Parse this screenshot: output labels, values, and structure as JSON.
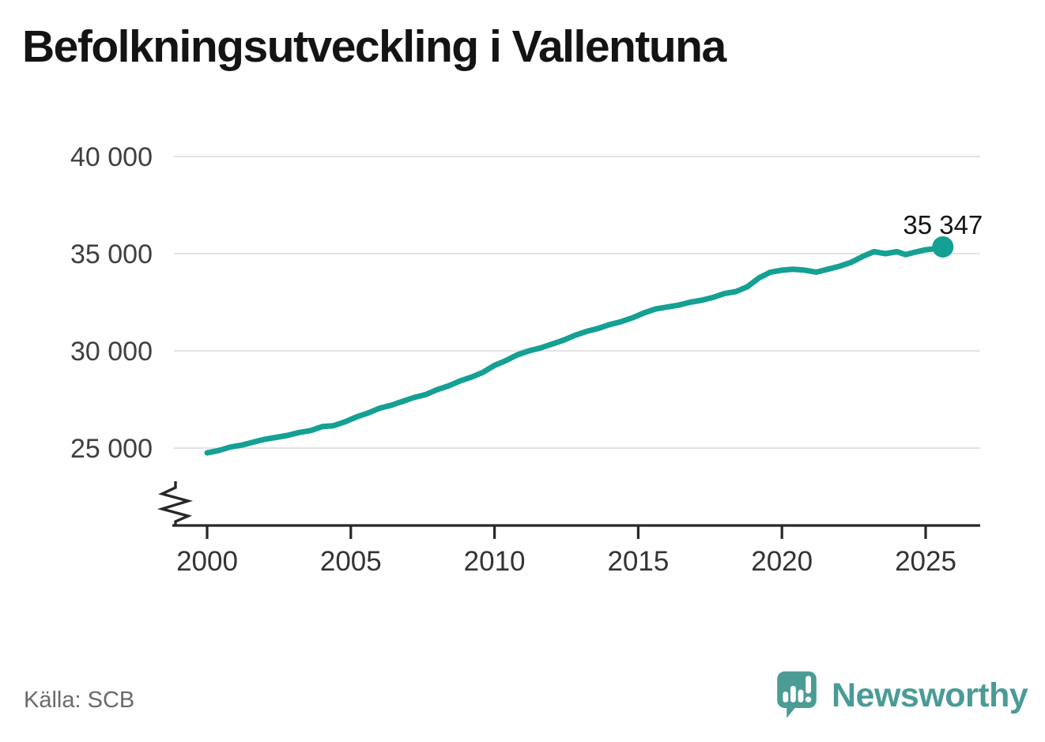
{
  "title": "Befolkningsutveckling i Vallentuna",
  "source": "Källa: SCB",
  "branding": {
    "logo_text": "Newsworthy",
    "logo_icon": "newsworthy-speech-bubble-barchart-icon",
    "brand_color": "#4a9b96"
  },
  "chart_data": {
    "type": "line",
    "title": "Befolkningsutveckling i Vallentuna",
    "xlabel": "",
    "ylabel": "",
    "x_ticks": [
      2000,
      2005,
      2010,
      2015,
      2020,
      2025
    ],
    "x_tick_labels": [
      "2000",
      "2005",
      "2010",
      "2015",
      "2020",
      "2025"
    ],
    "y_ticks": [
      25000,
      30000,
      35000,
      40000
    ],
    "y_tick_labels": [
      "25 000",
      "30 000",
      "35 000",
      "40 000"
    ],
    "ylim_displayed": [
      25000,
      40000
    ],
    "axis_break": true,
    "grid": "horizontal",
    "legend": "none",
    "end_label": "35 347",
    "end_value": 35347,
    "series": [
      {
        "name": "Befolkning i Vallentuna",
        "x": [
          2000.0,
          2000.4,
          2000.8,
          2001.2,
          2001.6,
          2002.0,
          2002.4,
          2002.8,
          2003.2,
          2003.6,
          2004.0,
          2004.4,
          2004.8,
          2005.2,
          2005.6,
          2006.0,
          2006.4,
          2006.8,
          2007.2,
          2007.6,
          2008.0,
          2008.4,
          2008.8,
          2009.2,
          2009.6,
          2010.0,
          2010.4,
          2010.8,
          2011.2,
          2011.6,
          2012.0,
          2012.4,
          2012.8,
          2013.2,
          2013.6,
          2014.0,
          2014.4,
          2014.8,
          2015.2,
          2015.6,
          2016.0,
          2016.4,
          2016.8,
          2017.2,
          2017.6,
          2018.0,
          2018.4,
          2018.8,
          2019.2,
          2019.6,
          2020.0,
          2020.4,
          2020.8,
          2021.2,
          2021.6,
          2022.0,
          2022.4,
          2022.8,
          2023.2,
          2023.6,
          2024.0,
          2024.3,
          2024.7,
          2025.0,
          2025.3,
          2025.6
        ],
        "values": [
          24750,
          24870,
          25050,
          25150,
          25300,
          25450,
          25550,
          25650,
          25800,
          25900,
          26100,
          26150,
          26350,
          26600,
          26800,
          27050,
          27200,
          27400,
          27600,
          27750,
          28000,
          28200,
          28450,
          28650,
          28900,
          29250,
          29500,
          29800,
          30000,
          30150,
          30350,
          30550,
          30800,
          31000,
          31150,
          31350,
          31500,
          31700,
          31950,
          32150,
          32250,
          32350,
          32500,
          32600,
          32750,
          32950,
          33050,
          33300,
          33750,
          34050,
          34150,
          34200,
          34150,
          34050,
          34200,
          34350,
          34550,
          34850,
          35100,
          35000,
          35100,
          34950,
          35100,
          35200,
          35250,
          35347
        ]
      }
    ],
    "colors": {
      "line": "#14a092",
      "grid": "#e3e3e3",
      "axis": "#272727",
      "y_tick_label": "#3f3f3f",
      "x_tick_label": "#333333",
      "end_label": "#141414"
    }
  }
}
